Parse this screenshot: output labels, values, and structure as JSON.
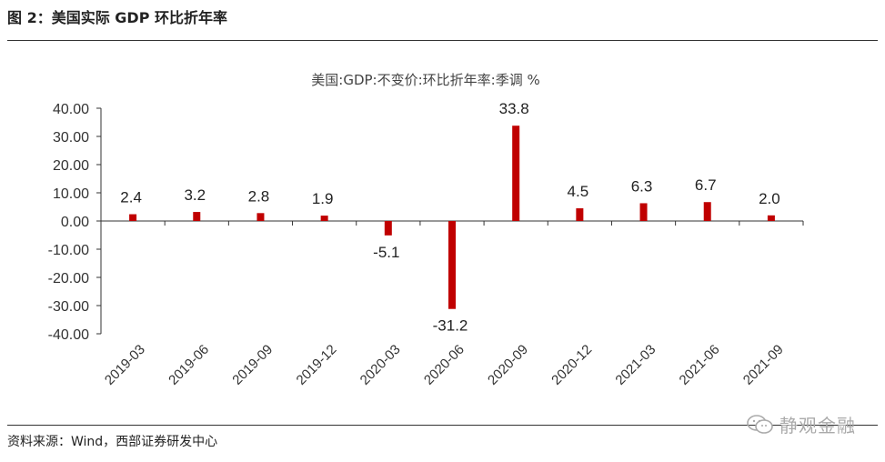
{
  "figure": {
    "title": "图 2：美国实际 GDP 环比折年率",
    "source": "资料来源：Wind，西部证券研发中心",
    "watermark": "静观金融"
  },
  "colors": {
    "bar": "#C00000",
    "axis": "#333333",
    "rule": "#333333"
  },
  "chart_data": {
    "type": "bar",
    "title": "美国:GDP:不变价:环比折年率:季调 %",
    "categories": [
      "2019-03",
      "2019-06",
      "2019-09",
      "2019-12",
      "2020-03",
      "2020-06",
      "2020-09",
      "2020-12",
      "2021-03",
      "2021-06",
      "2021-09"
    ],
    "values": [
      2.4,
      3.2,
      2.8,
      1.9,
      -5.1,
      -31.2,
      33.8,
      4.5,
      6.3,
      6.7,
      2.0
    ],
    "data_labels": [
      "2.4",
      "3.2",
      "2.8",
      "1.9",
      "-5.1",
      "-31.2",
      "33.8",
      "4.5",
      "6.3",
      "6.7",
      "2.0"
    ],
    "ylim": [
      -40,
      40
    ],
    "yticks": [
      40,
      30,
      20,
      10,
      0,
      -10,
      -20,
      -30,
      -40
    ],
    "ytick_labels": [
      "40.00",
      "30.00",
      "20.00",
      "10.00",
      "0.00",
      "-10.00",
      "-20.00",
      "-30.00",
      "-40.00"
    ],
    "xlabel": "",
    "ylabel": "",
    "grid": false,
    "legend": "none"
  }
}
